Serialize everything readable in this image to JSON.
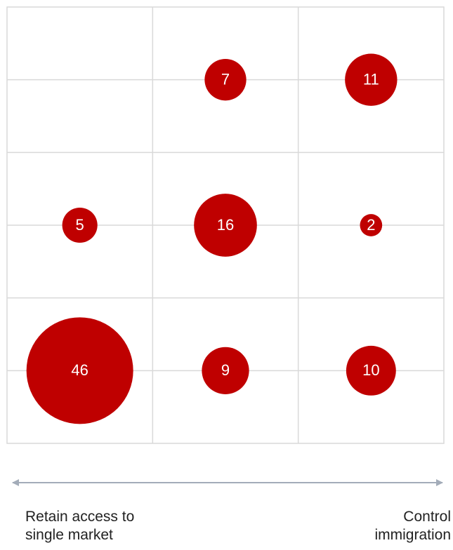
{
  "chart_data": {
    "type": "bubble_grid",
    "values": [
      [
        null,
        7,
        11
      ],
      [
        5,
        16,
        2
      ],
      [
        46,
        9,
        10
      ]
    ],
    "color": "#bf0000",
    "left_label": "Retain access to single market",
    "right_label": "Control immigration"
  }
}
